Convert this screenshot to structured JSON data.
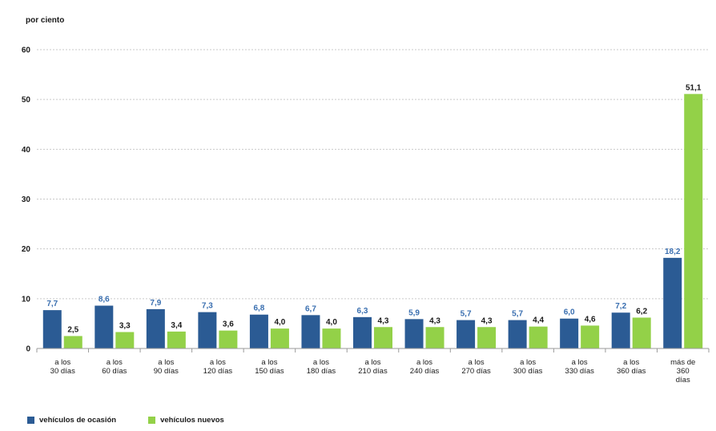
{
  "chart_data": {
    "type": "bar",
    "ylabel": "por ciento",
    "ylim": [
      0,
      60
    ],
    "yticks": [
      0,
      10,
      20,
      30,
      40,
      50,
      60
    ],
    "grid": true,
    "legend_position": "bottom-left",
    "categories": [
      [
        "a los",
        "30 días"
      ],
      [
        "a los",
        "60 días"
      ],
      [
        "a los",
        "90 días"
      ],
      [
        "a los",
        "120 días"
      ],
      [
        "a los",
        "150 días"
      ],
      [
        "a los",
        "180 días"
      ],
      [
        "a los",
        "210 días"
      ],
      [
        "a los",
        "240 días"
      ],
      [
        "a los",
        "270 días"
      ],
      [
        "a los",
        "300 días"
      ],
      [
        "a los",
        "330 días"
      ],
      [
        "a los",
        "360 días"
      ],
      [
        "más de",
        "360",
        "días"
      ]
    ],
    "series": [
      {
        "name": "vehículos de ocasión",
        "color": "#2b5b94",
        "label_color": "#3a6fb0",
        "values": [
          7.7,
          8.6,
          7.9,
          7.3,
          6.8,
          6.7,
          6.3,
          5.9,
          5.7,
          5.7,
          6.0,
          7.2,
          18.2
        ],
        "labels": [
          "7,7",
          "8,6",
          "7,9",
          "7,3",
          "6,8",
          "6,7",
          "6,3",
          "5,9",
          "5,7",
          "5,7",
          "6,0",
          "7,2",
          "18,2"
        ]
      },
      {
        "name": "vehículos nuevos",
        "color": "#93d148",
        "label_color": "#1a1a1a",
        "values": [
          2.5,
          3.3,
          3.4,
          3.6,
          4.0,
          4.0,
          4.3,
          4.3,
          4.3,
          4.4,
          4.6,
          6.2,
          51.1
        ],
        "labels": [
          "2,5",
          "3,3",
          "3,4",
          "3,6",
          "4,0",
          "4,0",
          "4,3",
          "4,3",
          "4,3",
          "4,4",
          "4,6",
          "6,2",
          "51,1"
        ]
      }
    ]
  }
}
